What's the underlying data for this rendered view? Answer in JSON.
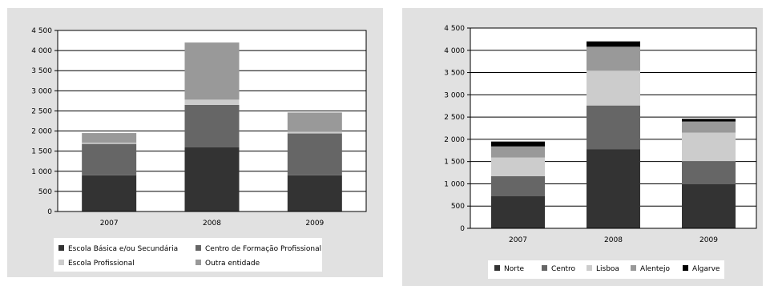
{
  "chart_data": [
    {
      "type": "bar",
      "stacked": true,
      "categories": [
        "2007",
        "2008",
        "2009"
      ],
      "series": [
        {
          "name": "Escola Básica e/ou Secundária",
          "values": [
            900,
            1600,
            900
          ],
          "color": "#333333"
        },
        {
          "name": "Centro de Formação Profissional",
          "values": [
            780,
            1050,
            1040
          ],
          "color": "#666666"
        },
        {
          "name": "Escola Profissional",
          "values": [
            30,
            130,
            40
          ],
          "color": "#cccccc"
        },
        {
          "name": "Outra entidade",
          "values": [
            240,
            1420,
            480
          ],
          "color": "#999999"
        }
      ],
      "ylim": [
        0,
        4500
      ],
      "yticks": [
        "0",
        "500",
        "1 000",
        "1 500",
        "2 000",
        "2 500",
        "3 000",
        "3 500",
        "4 000",
        "4 500"
      ],
      "grid": true,
      "legend_position": "bottom"
    },
    {
      "type": "bar",
      "stacked": true,
      "categories": [
        "2007",
        "2008",
        "2009"
      ],
      "series": [
        {
          "name": "Norte",
          "values": [
            720,
            1780,
            990
          ],
          "color": "#333333"
        },
        {
          "name": "Centro",
          "values": [
            450,
            980,
            520
          ],
          "color": "#666666"
        },
        {
          "name": "Lisboa",
          "values": [
            420,
            780,
            640
          ],
          "color": "#cccccc"
        },
        {
          "name": "Alentejo",
          "values": [
            250,
            540,
            250
          ],
          "color": "#999999"
        },
        {
          "name": "Algarve",
          "values": [
            110,
            120,
            60
          ],
          "color": "#000000"
        }
      ],
      "ylim": [
        0,
        4500
      ],
      "yticks": [
        "0",
        "500",
        "1 000",
        "1 500",
        "2 000",
        "2 500",
        "3 000",
        "3 500",
        "4 000",
        "4 500"
      ],
      "grid": true,
      "legend_position": "bottom"
    }
  ]
}
